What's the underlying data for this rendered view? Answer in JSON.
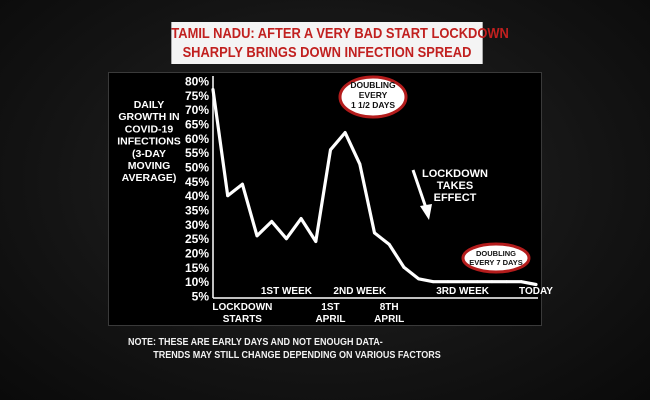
{
  "headline": {
    "line1": "TAMIL NADU: AFTER A VERY BAD START LOCKDOWN",
    "line2": "SHARPLY BRINGS DOWN INFECTION SPREAD"
  },
  "colors": {
    "title_text": "#c1201f",
    "title_bg": "#f4f4f4",
    "line": "#ffffff",
    "badge_ring": "#b41c1c"
  },
  "chart_data": {
    "type": "line",
    "ylabel_lines": [
      "DAILY",
      "GROWTH IN",
      "COVID-19",
      "INFECTIONS",
      "(3-DAY",
      "MOVING",
      "AVERAGE)"
    ],
    "ylim": [
      5,
      80
    ],
    "yticks": [
      "80%",
      "75%",
      "70%",
      "65%",
      "60%",
      "55%",
      "50%",
      "45%",
      "40%",
      "35%",
      "30%",
      "25%",
      "20%",
      "15%",
      "10%",
      "5%"
    ],
    "ytick_values": [
      80,
      75,
      70,
      65,
      60,
      55,
      50,
      45,
      40,
      35,
      30,
      25,
      20,
      15,
      10,
      5
    ],
    "x": [
      0,
      1,
      2,
      3,
      4,
      5,
      6,
      7,
      8,
      9,
      10,
      11,
      12,
      13,
      14,
      15,
      16,
      17,
      18,
      19,
      20,
      21,
      22
    ],
    "values": [
      77,
      40,
      44,
      26,
      31,
      25,
      32,
      24,
      56,
      62,
      51,
      27,
      23,
      15,
      11,
      10,
      10,
      10,
      10,
      10,
      10,
      10,
      9
    ],
    "x_labels": [
      {
        "x": 2,
        "lines": [
          "LOCKDOWN",
          "STARTS"
        ]
      },
      {
        "x": 5,
        "lines": [
          "1ST WEEK"
        ]
      },
      {
        "x": 8,
        "lines": [
          "1ST",
          "APRIL"
        ]
      },
      {
        "x": 10,
        "lines": [
          "2ND WEEK"
        ]
      },
      {
        "x": 12,
        "lines": [
          "8TH",
          "APRIL"
        ]
      },
      {
        "x": 17,
        "lines": [
          "3RD WEEK"
        ]
      },
      {
        "x": 22,
        "lines": [
          "TODAY"
        ]
      }
    ],
    "annotations": {
      "peak_badge": [
        "DOUBLING",
        "EVERY",
        "1 1/2 DAYS"
      ],
      "lockdown_note": [
        "LOCKDOWN",
        "TAKES",
        "EFFECT"
      ],
      "late_badge": [
        "DOUBLING",
        "EVERY 7 DAYS"
      ]
    },
    "note_lines": [
      "NOTE: THESE ARE EARLY DAYS AND NOT ENOUGH DATA-",
      "TRENDS MAY STILL CHANGE DEPENDING ON VARIOUS FACTORS"
    ]
  }
}
